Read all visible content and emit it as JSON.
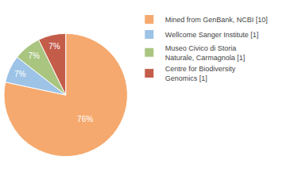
{
  "chart_data": {
    "type": "pie",
    "categories": [
      "Mined from GenBank, NCBI [10]",
      "Wellcome Sanger Institute [1]",
      "Museo Civico di Storia\nNaturale, Carmagnola [1]",
      "Centre for Biodiversity\nGenomics [1]"
    ],
    "values": [
      76,
      7,
      7,
      7
    ],
    "value_labels": [
      "76%",
      "7%",
      "7%",
      "7%"
    ],
    "colors": [
      "#F5A96E",
      "#9DC3E6",
      "#A9C580",
      "#C45C4A"
    ],
    "data_labels": true,
    "legend": "right"
  }
}
